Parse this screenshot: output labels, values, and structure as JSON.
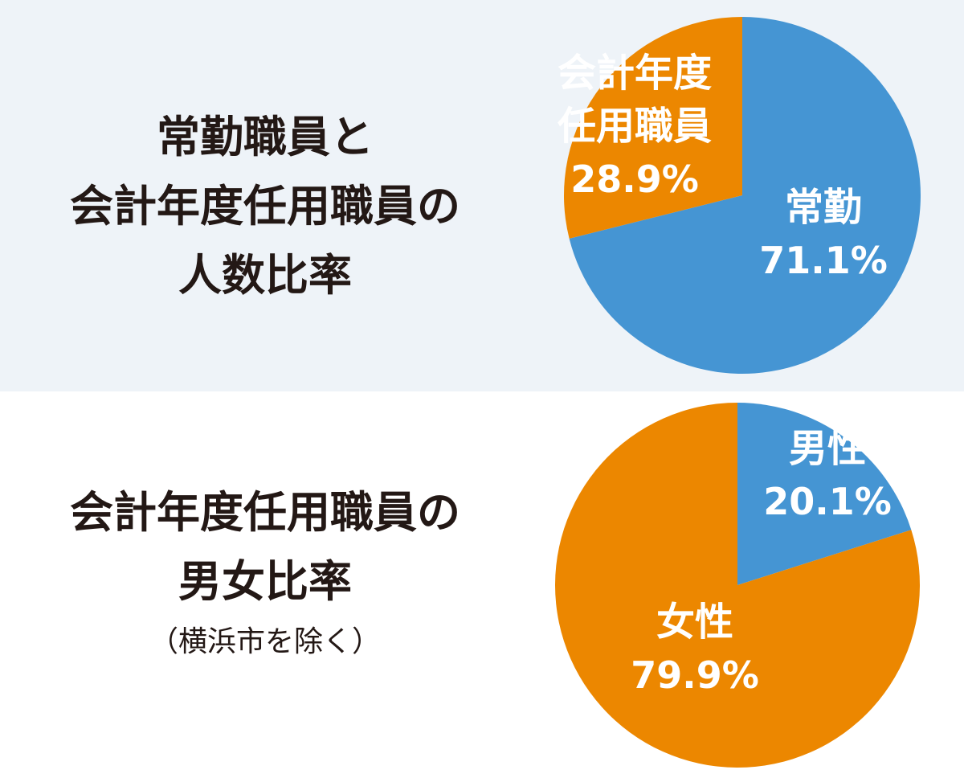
{
  "colors": {
    "blue": "#4595d3",
    "orange": "#ec8700",
    "panel": "#eef3f8",
    "text": "#231815"
  },
  "chart_data": [
    {
      "type": "pie",
      "title_lines": [
        "常勤職員と",
        "会計年度任用職員の",
        "人数比率"
      ],
      "slices": [
        {
          "name": "常勤",
          "value": 71.1,
          "value_label": "71.1%",
          "color": "#4595d3"
        },
        {
          "name_lines": [
            "会計年度",
            "任用職員"
          ],
          "value": 28.9,
          "value_label": "28.9%",
          "color": "#ec8700"
        }
      ]
    },
    {
      "type": "pie",
      "title_lines": [
        "会計年度任用職員の",
        "男女比率"
      ],
      "note": "（横浜市を除く）",
      "slices": [
        {
          "name": "男性",
          "value": 20.1,
          "value_label": "20.1%",
          "color": "#4595d3"
        },
        {
          "name": "女性",
          "value": 79.9,
          "value_label": "79.9%",
          "color": "#ec8700"
        }
      ]
    }
  ]
}
